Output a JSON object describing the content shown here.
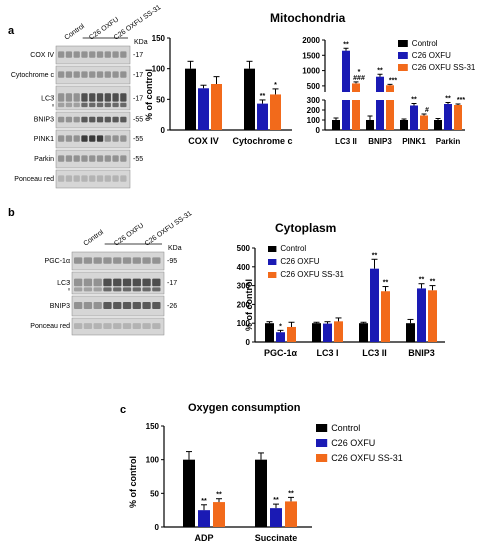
{
  "colors": {
    "control": "#000000",
    "oxfu": "#1a1ab4",
    "ss31": "#f26a1b"
  },
  "legend": [
    "Control",
    "C26 OXFU",
    "C26 OXFU SS-31"
  ],
  "panel_a": {
    "letter": "a",
    "blot": {
      "lanes": [
        "Control",
        "C26 OXFU",
        "C26 OXFU SS-31"
      ],
      "kda": "KDa",
      "rows": [
        {
          "label": "COX IV",
          "kda": "-17"
        },
        {
          "label": "Cytochrome c",
          "kda": "-17"
        },
        {
          "label": "LC3",
          "kda": "-17",
          "sub": [
            "I",
            "II"
          ]
        },
        {
          "label": "BNIP3",
          "kda": "-55"
        },
        {
          "label": "PINK1",
          "kda": "-55"
        },
        {
          "label": "Parkin",
          "kda": "-55"
        },
        {
          "label": "Ponceau red",
          "kda": ""
        }
      ]
    }
  },
  "panel_b": {
    "letter": "b",
    "blot": {
      "lanes": [
        "Control",
        "C26 OXFU",
        "C26 OXFU SS-31"
      ],
      "kda": "KDa",
      "rows": [
        {
          "label": "PGC-1α",
          "kda": "-95"
        },
        {
          "label": "LC3",
          "kda": "-17",
          "sub": [
            "I",
            "II"
          ]
        },
        {
          "label": "BNIP3",
          "kda": "-26"
        },
        {
          "label": "Ponceau red",
          "kda": ""
        }
      ]
    }
  },
  "panel_c": {
    "letter": "c"
  },
  "chart_data": [
    {
      "id": "mito-left",
      "type": "bar",
      "title": "Mitochondria",
      "ylabel": "% of control",
      "ylim": [
        0,
        150
      ],
      "yticks": [
        0,
        50,
        100,
        150
      ],
      "categories": [
        "COX IV",
        "Cytochrome c"
      ],
      "series": [
        {
          "name": "Control",
          "values": [
            100,
            100
          ],
          "err": [
            12,
            12
          ]
        },
        {
          "name": "C26 OXFU",
          "values": [
            68,
            43
          ],
          "err": [
            5,
            6
          ]
        },
        {
          "name": "C26 OXFU SS-31",
          "values": [
            75,
            58
          ],
          "err": [
            12,
            9
          ]
        }
      ],
      "annotations": [
        {
          "cat": 1,
          "series": 1,
          "text": "**"
        },
        {
          "cat": 1,
          "series": 2,
          "text": "*"
        }
      ]
    },
    {
      "id": "mito-right",
      "type": "bar",
      "broken_axis": true,
      "ylim_upper": [
        300,
        2000
      ],
      "yticks_upper": [
        500,
        1000,
        1500,
        2000
      ],
      "ylim_lower": [
        0,
        300
      ],
      "yticks_lower": [
        0,
        100,
        200,
        300
      ],
      "categories": [
        "LC3 II",
        "BNIP3",
        "PINK1",
        "Parkin"
      ],
      "series": [
        {
          "name": "Control",
          "values": [
            100,
            100,
            100,
            100
          ],
          "err": [
            20,
            40,
            10,
            15
          ]
        },
        {
          "name": "C26 OXFU",
          "values": [
            1650,
            800,
            245,
            260
          ],
          "err": [
            80,
            80,
            20,
            15
          ]
        },
        {
          "name": "C26 OXFU SS-31",
          "values": [
            580,
            520,
            145,
            250
          ],
          "err": [
            50,
            30,
            15,
            10
          ]
        }
      ],
      "annotations": [
        {
          "cat": 0,
          "series": 1,
          "text": "**"
        },
        {
          "cat": 0,
          "series": 2,
          "text": "###"
        },
        {
          "cat": 0,
          "series": 2,
          "text": "*"
        },
        {
          "cat": 1,
          "series": 1,
          "text": "**"
        },
        {
          "cat": 1,
          "series": 2,
          "text": "***"
        },
        {
          "cat": 2,
          "series": 1,
          "text": "**"
        },
        {
          "cat": 2,
          "series": 2,
          "text": "#"
        },
        {
          "cat": 3,
          "series": 1,
          "text": "**"
        },
        {
          "cat": 3,
          "series": 2,
          "text": "***"
        }
      ]
    },
    {
      "id": "cytoplasm",
      "type": "bar",
      "title": "Cytoplasm",
      "ylabel": "% of control",
      "ylim": [
        0,
        500
      ],
      "yticks": [
        0,
        100,
        200,
        300,
        400,
        500
      ],
      "categories": [
        "PGC-1α",
        "LC3 I",
        "LC3 II",
        "BNIP3"
      ],
      "series": [
        {
          "name": "Control",
          "values": [
            100,
            100,
            100,
            100
          ],
          "err": [
            8,
            5,
            5,
            20
          ]
        },
        {
          "name": "C26 OXFU",
          "values": [
            52,
            98,
            390,
            285
          ],
          "err": [
            10,
            10,
            50,
            25
          ]
        },
        {
          "name": "C26 OXFU SS-31",
          "values": [
            80,
            110,
            270,
            275
          ],
          "err": [
            25,
            18,
            25,
            25
          ]
        }
      ],
      "annotations": [
        {
          "cat": 0,
          "series": 1,
          "text": "*"
        },
        {
          "cat": 2,
          "series": 1,
          "text": "**"
        },
        {
          "cat": 2,
          "series": 2,
          "text": "**"
        },
        {
          "cat": 3,
          "series": 1,
          "text": "**"
        },
        {
          "cat": 3,
          "series": 2,
          "text": "**"
        }
      ]
    },
    {
      "id": "oxygen",
      "type": "bar",
      "title": "Oxygen consumption",
      "ylabel": "% of control",
      "ylim": [
        0,
        150
      ],
      "yticks": [
        0,
        50,
        100,
        150
      ],
      "categories": [
        "ADP",
        "Succinate"
      ],
      "series": [
        {
          "name": "Control",
          "values": [
            100,
            100
          ],
          "err": [
            12,
            10
          ]
        },
        {
          "name": "C26 OXFU",
          "values": [
            25,
            28
          ],
          "err": [
            8,
            6
          ]
        },
        {
          "name": "C26 OXFU SS-31",
          "values": [
            37,
            38
          ],
          "err": [
            5,
            6
          ]
        }
      ],
      "annotations": [
        {
          "cat": 0,
          "series": 1,
          "text": "**"
        },
        {
          "cat": 0,
          "series": 2,
          "text": "**"
        },
        {
          "cat": 1,
          "series": 1,
          "text": "**"
        },
        {
          "cat": 1,
          "series": 2,
          "text": "**"
        }
      ]
    }
  ]
}
